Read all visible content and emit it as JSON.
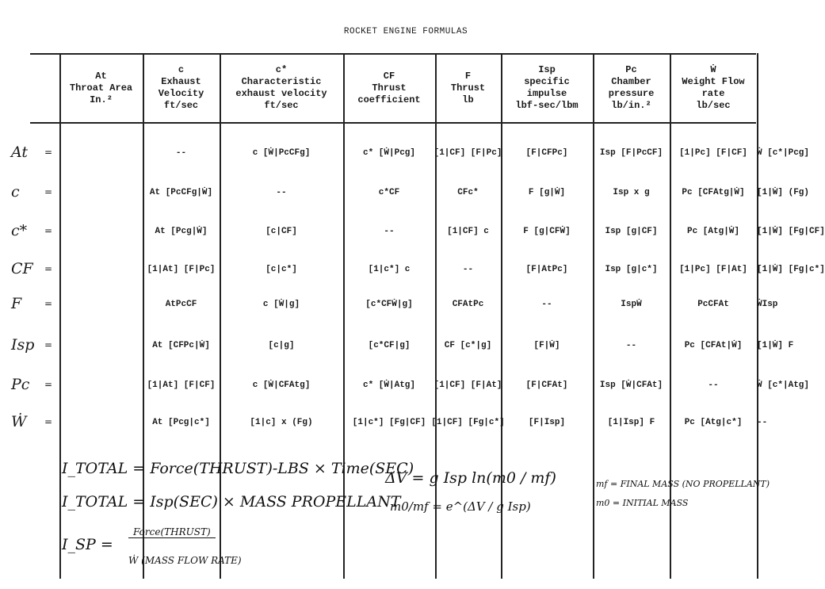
{
  "title": "ROCKET ENGINE FORMULAS",
  "headers": [
    [
      "At",
      "Throat Area",
      "In.²"
    ],
    [
      "c",
      "Exhaust",
      "Velocity",
      "ft/sec"
    ],
    [
      "c*",
      "Characteristic",
      "exhaust velocity",
      "ft/sec"
    ],
    [
      "CF",
      "Thrust",
      "coefficient"
    ],
    [
      "F",
      "Thrust",
      "lb"
    ],
    [
      "Isp",
      "specific",
      "impulse",
      "lbf-sec/lbm"
    ],
    [
      "Pc",
      "Chamber",
      "pressure",
      "lb/in.²"
    ],
    [
      "Ẇ",
      "Weight Flow",
      "rate",
      "lb/sec"
    ]
  ],
  "row_labels": [
    "At",
    "c",
    "c*",
    "CF",
    "F",
    "Isp",
    "Pc",
    "Ẇ"
  ],
  "equals": "=",
  "cells": [
    [
      "--",
      "c [Ẇ|PcCFg]",
      "c* [Ẇ|Pcg]",
      "[1|CF] [F|Pc]",
      "[F|CFPc]",
      "Isp [F|PcCF]",
      "[1|Pc] [F|CF]",
      "Ẇ [c*|Pcg]"
    ],
    [
      "At [PcCFg|Ẇ]",
      "--",
      "c*CF",
      "CFc*",
      "F [g|Ẇ]",
      "Isp x g",
      "Pc [CFAtg|Ẇ]",
      "[1|Ẇ] (Fg)"
    ],
    [
      "At [Pcg|Ẇ]",
      "[c|CF]",
      "--",
      "[1|CF] c",
      "F [g|CFẆ]",
      "Isp [g|CF]",
      "Pc [Atg|Ẇ]",
      "[1|Ẇ] [Fg|CF]"
    ],
    [
      "[1|At] [F|Pc]",
      "[c|c*]",
      "[1|c*] c",
      "--",
      "[F|AtPc]",
      "Isp [g|c*]",
      "[1|Pc] [F|At]",
      "[1|Ẇ] [Fg|c*]"
    ],
    [
      "AtPcCF",
      "c [Ẇ|g]",
      "[c*CFẆ|g]",
      "CFAtPc",
      "--",
      "IspẆ",
      "PcCFAt",
      "ẆIsp"
    ],
    [
      "At [CFPc|Ẇ]",
      "[c|g]",
      "[c*CF|g]",
      "CF [c*|g]",
      "[F|Ẇ]",
      "--",
      "Pc [CFAt|Ẇ]",
      "[1|Ẇ] F"
    ],
    [
      "[1|At] [F|CF]",
      "c [Ẇ|CFAtg]",
      "c* [Ẇ|Atg]",
      "[1|CF] [F|At]",
      "[F|CFAt]",
      "Isp [Ẇ|CFAt]",
      "--",
      "Ẇ [c*|Atg]"
    ],
    [
      "At [Pcg|c*]",
      "[1|c] x (Fg)",
      "[1|c*] [Fg|CF]",
      "[1|CF] [Fg|c*]",
      "[F|Isp]",
      "[1|Isp] F",
      "Pc [Atg|c*]",
      "--"
    ]
  ],
  "handwritten": {
    "line1": "I_TOTAL = Force(THRUST)-LBS × Time(SEC)",
    "line2": "I_TOTAL = Isp(SEC) × MASS PROPELLANT",
    "line3_lhs": "I_SP =",
    "line3_num": "Force(THRUST)",
    "line3_den": "Ẇ (MASS FLOW RATE)",
    "dv": "ΔV = g Isp ln(m0 / mf)",
    "ratio": "m0/mf = e^(ΔV / g Isp)",
    "mf_def": "mf = FINAL MASS (NO PROPELLANT)",
    "m0_def": "m0 = INITIAL MASS"
  }
}
